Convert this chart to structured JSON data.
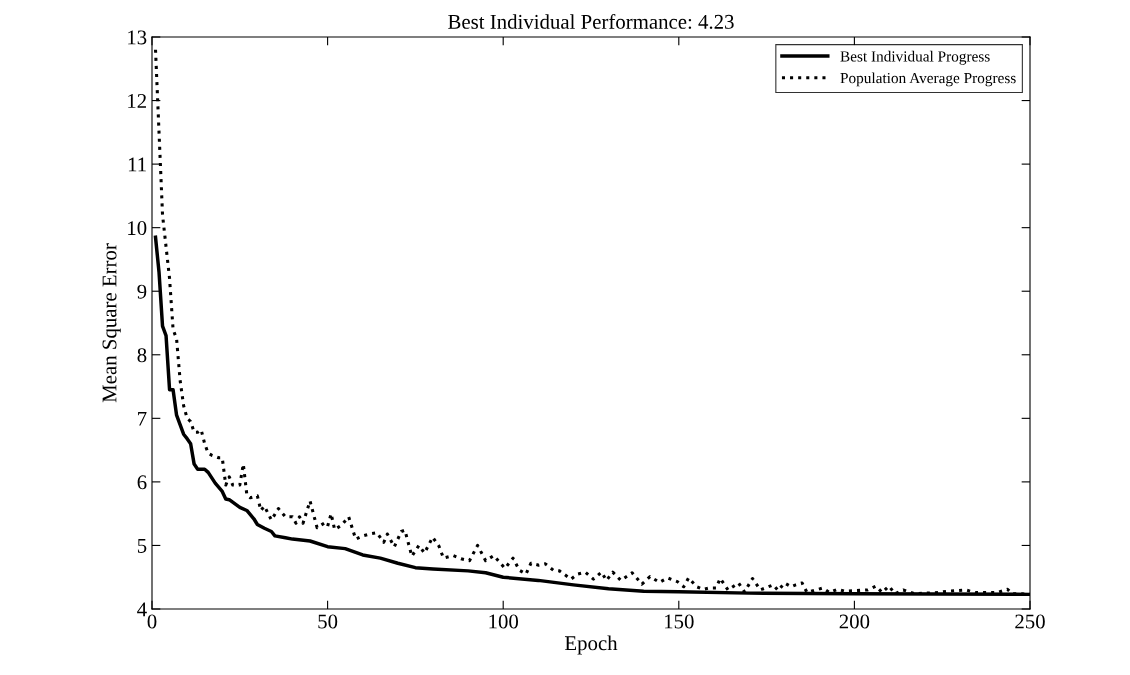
{
  "chart_data": {
    "type": "line",
    "title": "Best Individual Performance: 4.23",
    "xlabel": "Epoch",
    "ylabel": "Mean Square Error",
    "xlim": [
      0,
      250
    ],
    "ylim": [
      4,
      13
    ],
    "xticks": [
      0,
      50,
      100,
      150,
      200,
      250
    ],
    "yticks": [
      4,
      5,
      6,
      7,
      8,
      9,
      10,
      11,
      12,
      13
    ],
    "grid": false,
    "legend": "top right",
    "marker": "none",
    "series": [
      {
        "name": "Best Individual Progress",
        "color": "#000000",
        "line_style": "solid",
        "x": [
          1,
          2,
          3,
          4,
          5,
          6,
          7,
          8,
          9,
          10,
          11,
          12,
          13,
          15,
          16,
          18,
          20,
          21,
          22,
          25,
          27,
          29,
          30,
          32,
          34,
          35,
          38,
          40,
          45,
          50,
          55,
          60,
          65,
          70,
          75,
          80,
          90,
          95,
          100,
          110,
          120,
          130,
          140,
          150,
          170,
          200,
          250
        ],
        "values": [
          9.85,
          9.3,
          8.45,
          8.3,
          7.45,
          7.45,
          7.05,
          6.9,
          6.75,
          6.68,
          6.6,
          6.28,
          6.2,
          6.2,
          6.15,
          5.98,
          5.85,
          5.73,
          5.72,
          5.6,
          5.55,
          5.42,
          5.33,
          5.27,
          5.22,
          5.15,
          5.12,
          5.1,
          5.07,
          4.98,
          4.95,
          4.85,
          4.8,
          4.72,
          4.65,
          4.63,
          4.6,
          4.57,
          4.5,
          4.45,
          4.38,
          4.32,
          4.28,
          4.27,
          4.25,
          4.24,
          4.23
        ]
      },
      {
        "name": "Population Average Progress",
        "color": "#000000",
        "line_style": "dotted",
        "x": [
          1,
          2,
          3,
          4,
          5,
          6,
          7,
          8,
          9,
          10,
          11,
          12,
          13,
          14,
          15,
          16,
          17,
          18,
          19,
          20,
          21,
          22,
          23,
          25,
          26,
          27,
          28,
          30,
          31,
          32,
          34,
          36,
          38,
          40,
          41,
          42,
          43,
          45,
          47,
          49,
          50,
          51,
          52,
          54,
          56,
          58,
          60,
          62,
          64,
          66,
          67,
          69,
          71,
          72,
          74,
          76,
          77.6,
          79.9,
          81.7,
          83,
          85.8,
          88,
          90.4,
          92.7,
          95,
          97.3,
          100.5,
          102.8,
          104.6,
          106.5,
          107.9,
          110.1,
          112,
          114.3,
          116,
          119.3,
          121.2,
          123.4,
          125.7,
          128,
          129.4,
          131.2,
          133.5,
          136.7,
          139.5,
          141.8,
          144.5,
          146.8,
          149.6,
          151.4,
          152.8,
          155.1,
          157,
          158.6,
          160.6,
          161.8,
          164,
          167,
          168.7,
          171,
          173.2,
          176.9,
          178.3,
          180.1,
          182,
          183.3,
          185.1,
          186.5,
          191,
          192.9,
          195.2,
          197.4,
          203.8,
          206.1,
          207.9,
          209.8,
          211.6,
          213.9,
          217.1,
          223.9,
          226.7,
          231.7,
          234.4,
          240.8,
          243.6,
          244.9,
          247.2,
          250
        ],
        "values": [
          12.8,
          11.5,
          10.2,
          9.7,
          9.2,
          8.4,
          8.25,
          7.6,
          7.2,
          7.0,
          6.95,
          6.78,
          6.78,
          6.82,
          6.6,
          6.45,
          6.42,
          6.4,
          6.38,
          6.38,
          5.95,
          6.08,
          5.95,
          5.95,
          6.28,
          5.8,
          5.75,
          5.78,
          5.55,
          5.62,
          5.4,
          5.58,
          5.45,
          5.45,
          5.35,
          5.45,
          5.35,
          5.7,
          5.28,
          5.35,
          5.3,
          5.5,
          5.25,
          5.32,
          5.45,
          5.1,
          5.15,
          5.18,
          5.2,
          5.05,
          5.18,
          4.98,
          5.22,
          5.24,
          4.83,
          5.0,
          4.88,
          5.13,
          4.99,
          4.8,
          4.84,
          4.79,
          4.76,
          5.0,
          4.76,
          4.84,
          4.64,
          4.8,
          4.61,
          4.55,
          4.72,
          4.69,
          4.71,
          4.61,
          4.6,
          4.47,
          4.55,
          4.58,
          4.47,
          4.58,
          4.45,
          4.58,
          4.45,
          4.57,
          4.39,
          4.51,
          4.42,
          4.49,
          4.43,
          4.35,
          4.49,
          4.35,
          4.31,
          4.33,
          4.33,
          4.48,
          4.3,
          4.41,
          4.27,
          4.48,
          4.3,
          4.38,
          4.29,
          4.41,
          4.35,
          4.38,
          4.41,
          4.26,
          4.33,
          4.26,
          4.31,
          4.28,
          4.3,
          4.36,
          4.26,
          4.36,
          4.24,
          4.3,
          4.24,
          4.26,
          4.28,
          4.3,
          4.26,
          4.26,
          4.31,
          4.24,
          4.24,
          4.23
        ]
      }
    ]
  }
}
